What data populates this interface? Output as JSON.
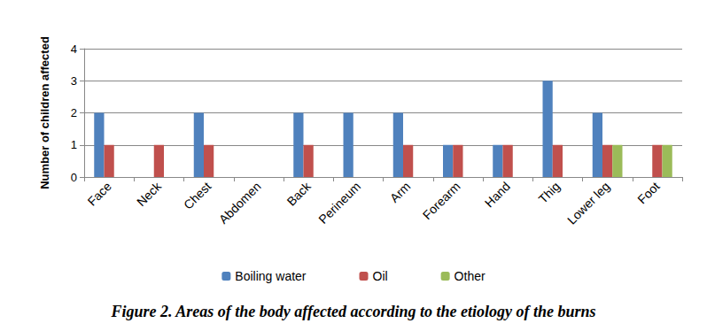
{
  "chart_data": {
    "type": "bar",
    "title": "Figure 2. Areas of the body affected according to the etiology of the burns",
    "y_label": "Number of children affected",
    "categories": [
      "Face",
      "Neck",
      "Chest",
      "Abdomen",
      "Back",
      "Perineum",
      "Arm",
      "Forearm",
      "Hand",
      "Thig",
      "Lower leg",
      "Foot"
    ],
    "series": [
      {
        "name": "Boiling water",
        "color": "#4f81bd",
        "values": [
          2,
          0,
          2,
          0,
          2,
          2,
          2,
          1,
          1,
          3,
          2,
          0
        ]
      },
      {
        "name": "Oil",
        "color": "#c0504d",
        "values": [
          1,
          1,
          1,
          0,
          1,
          0,
          1,
          1,
          1,
          1,
          1,
          1
        ]
      },
      {
        "name": "Other",
        "color": "#9bbb59",
        "values": [
          0,
          0,
          0,
          0,
          0,
          0,
          0,
          0,
          0,
          0,
          1,
          1
        ]
      }
    ],
    "ylim": [
      0,
      4
    ],
    "yticks": [
      0,
      1,
      2,
      3,
      4
    ],
    "grid": true,
    "legend": "bottom"
  }
}
